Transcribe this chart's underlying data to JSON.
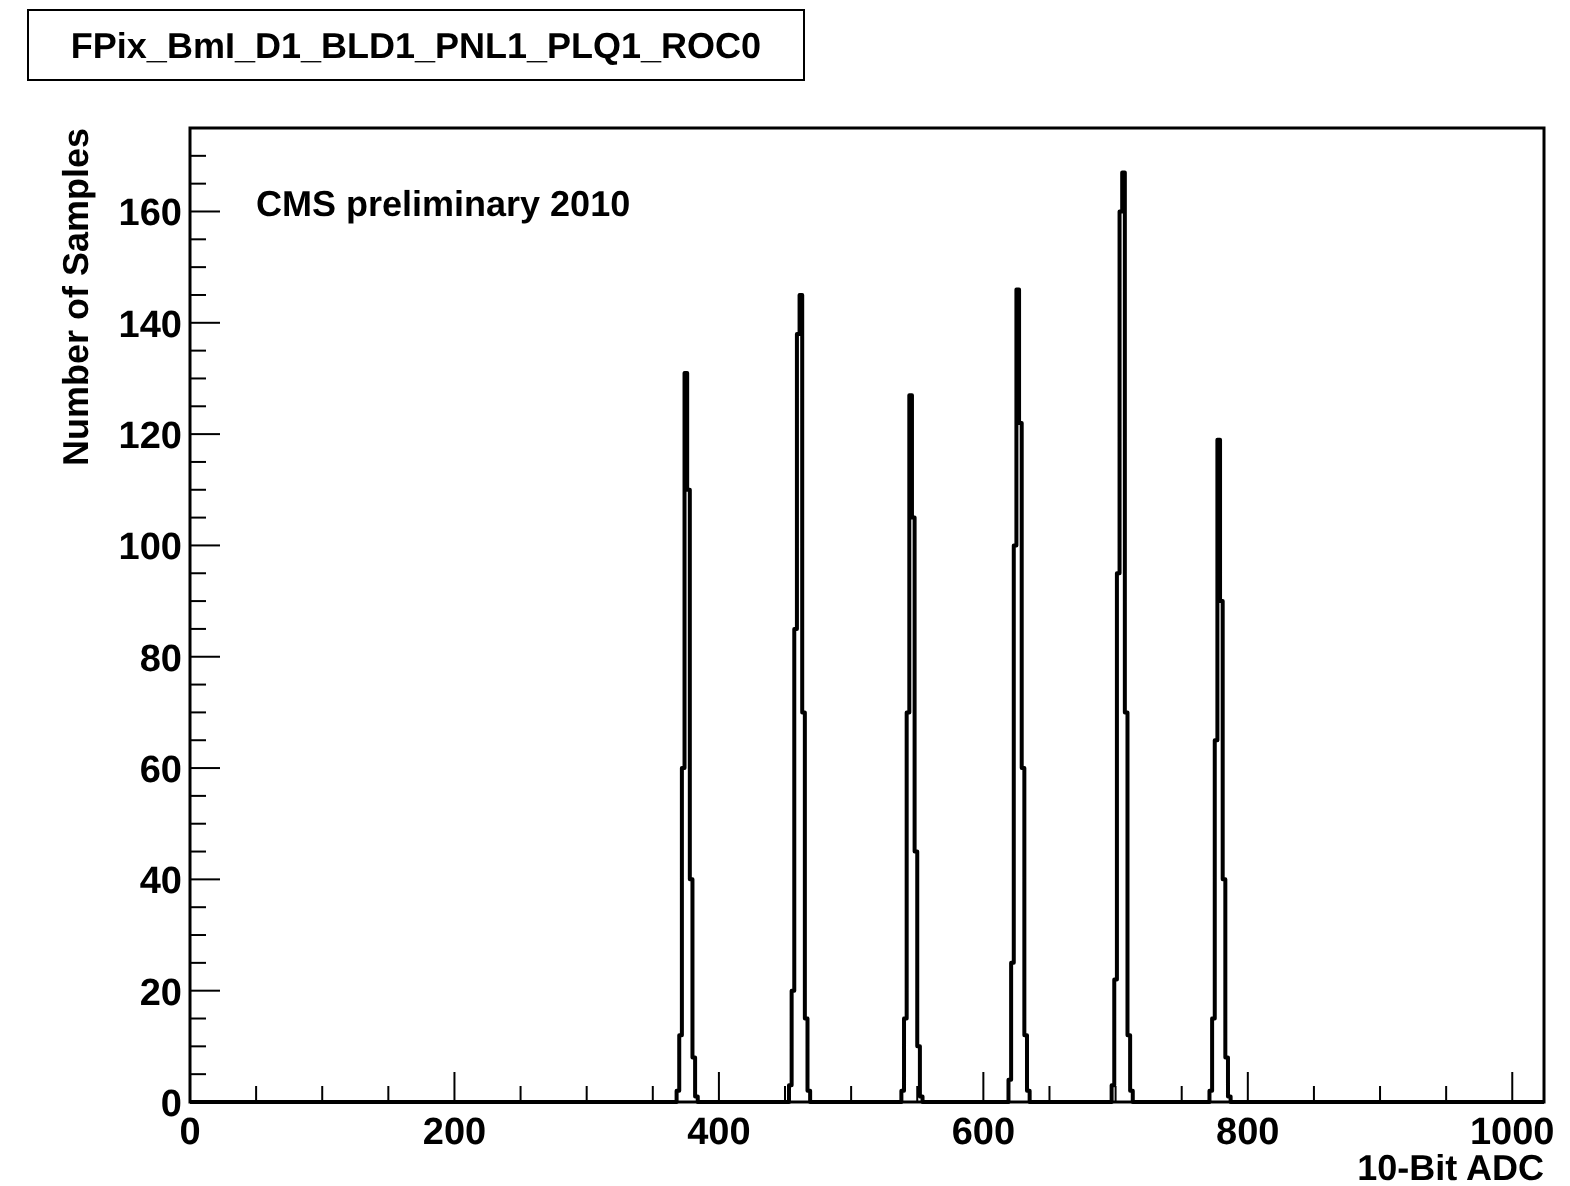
{
  "chart_data": {
    "type": "histogram",
    "title": "FPix_BmI_D1_BLD1_PNL1_PLQ1_ROC0",
    "xlabel": "10-Bit ADC",
    "ylabel": "Number of Samples",
    "annotations": [
      "CMS preliminary 2010"
    ],
    "bins": [
      0,
      366,
      368,
      370,
      372,
      374,
      376,
      378,
      380,
      382,
      384,
      386,
      451,
      453,
      455,
      457,
      459,
      461,
      463,
      465,
      467,
      469,
      471,
      536,
      538,
      540,
      542,
      544,
      546,
      548,
      550,
      552,
      554,
      556,
      617,
      619,
      621,
      623,
      625,
      627,
      629,
      631,
      633,
      635,
      637,
      695,
      697,
      699,
      701,
      703,
      705,
      707,
      709,
      711,
      713,
      715,
      769,
      771,
      773,
      775,
      777,
      779,
      781,
      783,
      785,
      787,
      789,
      1024
    ],
    "values": [
      0,
      0,
      2,
      12,
      60,
      131,
      110,
      40,
      8,
      1,
      0,
      0,
      0,
      3,
      20,
      85,
      138,
      145,
      70,
      15,
      2,
      0,
      0,
      0,
      2,
      15,
      70,
      127,
      105,
      45,
      10,
      1,
      0,
      0,
      0,
      4,
      25,
      100,
      146,
      122,
      60,
      12,
      2,
      0,
      0,
      0,
      3,
      22,
      95,
      160,
      167,
      70,
      12,
      2,
      0,
      0,
      0,
      2,
      15,
      65,
      119,
      90,
      40,
      8,
      1,
      0,
      0
    ],
    "color": "#000000",
    "xlim": [
      0,
      1024
    ],
    "ylim": [
      0,
      175
    ],
    "xticks": [
      0,
      {
        "value": 50,
        "label": null
      },
      {
        "value": 100,
        "label": null
      },
      {
        "value": 150,
        "label": null
      },
      200,
      {
        "value": 250,
        "label": null
      },
      {
        "value": 300,
        "label": null
      },
      {
        "value": 350,
        "label": null
      },
      400,
      {
        "value": 450,
        "label": null
      },
      {
        "value": 500,
        "label": null
      },
      {
        "value": 550,
        "label": null
      },
      600,
      {
        "value": 650,
        "label": null
      },
      {
        "value": 700,
        "label": null
      },
      {
        "value": 750,
        "label": null
      },
      800,
      {
        "value": 850,
        "label": null
      },
      {
        "value": 900,
        "label": null
      },
      {
        "value": 950,
        "label": null
      },
      1000
    ],
    "yticks": [
      0,
      {
        "value": 5,
        "label": null
      },
      {
        "value": 10,
        "label": null
      },
      {
        "value": 15,
        "label": null
      },
      20,
      {
        "value": 25,
        "label": null
      },
      {
        "value": 30,
        "label": null
      },
      {
        "value": 35,
        "label": null
      },
      40,
      {
        "value": 45,
        "label": null
      },
      {
        "value": 50,
        "label": null
      },
      {
        "value": 55,
        "label": null
      },
      60,
      {
        "value": 65,
        "label": null
      },
      {
        "value": 70,
        "label": null
      },
      {
        "value": 75,
        "label": null
      },
      80,
      {
        "value": 85,
        "label": null
      },
      {
        "value": 90,
        "label": null
      },
      {
        "value": 95,
        "label": null
      },
      100,
      {
        "value": 105,
        "label": null
      },
      {
        "value": 110,
        "label": null
      },
      {
        "value": 115,
        "label": null
      },
      120,
      {
        "value": 125,
        "label": null
      },
      {
        "value": 130,
        "label": null
      },
      {
        "value": 135,
        "label": null
      },
      140,
      {
        "value": 145,
        "label": null
      },
      {
        "value": 150,
        "label": null
      },
      {
        "value": 155,
        "label": null
      },
      160,
      {
        "value": 165,
        "label": null
      },
      {
        "value": 170,
        "label": null
      }
    ]
  }
}
